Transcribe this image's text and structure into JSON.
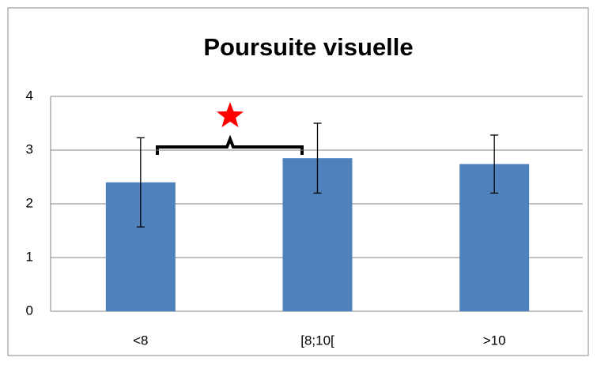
{
  "chart_data": {
    "type": "bar",
    "title": "Poursuite visuelle",
    "categories": [
      "<8",
      "[8;10[",
      ">10"
    ],
    "values": [
      2.4,
      2.85,
      2.74
    ],
    "errors": [
      0.83,
      0.65,
      0.54
    ],
    "color": "#4f81bd",
    "ylim": [
      0,
      4
    ],
    "yticks": [
      0,
      1,
      2,
      3,
      4
    ],
    "grid": true
  }
}
